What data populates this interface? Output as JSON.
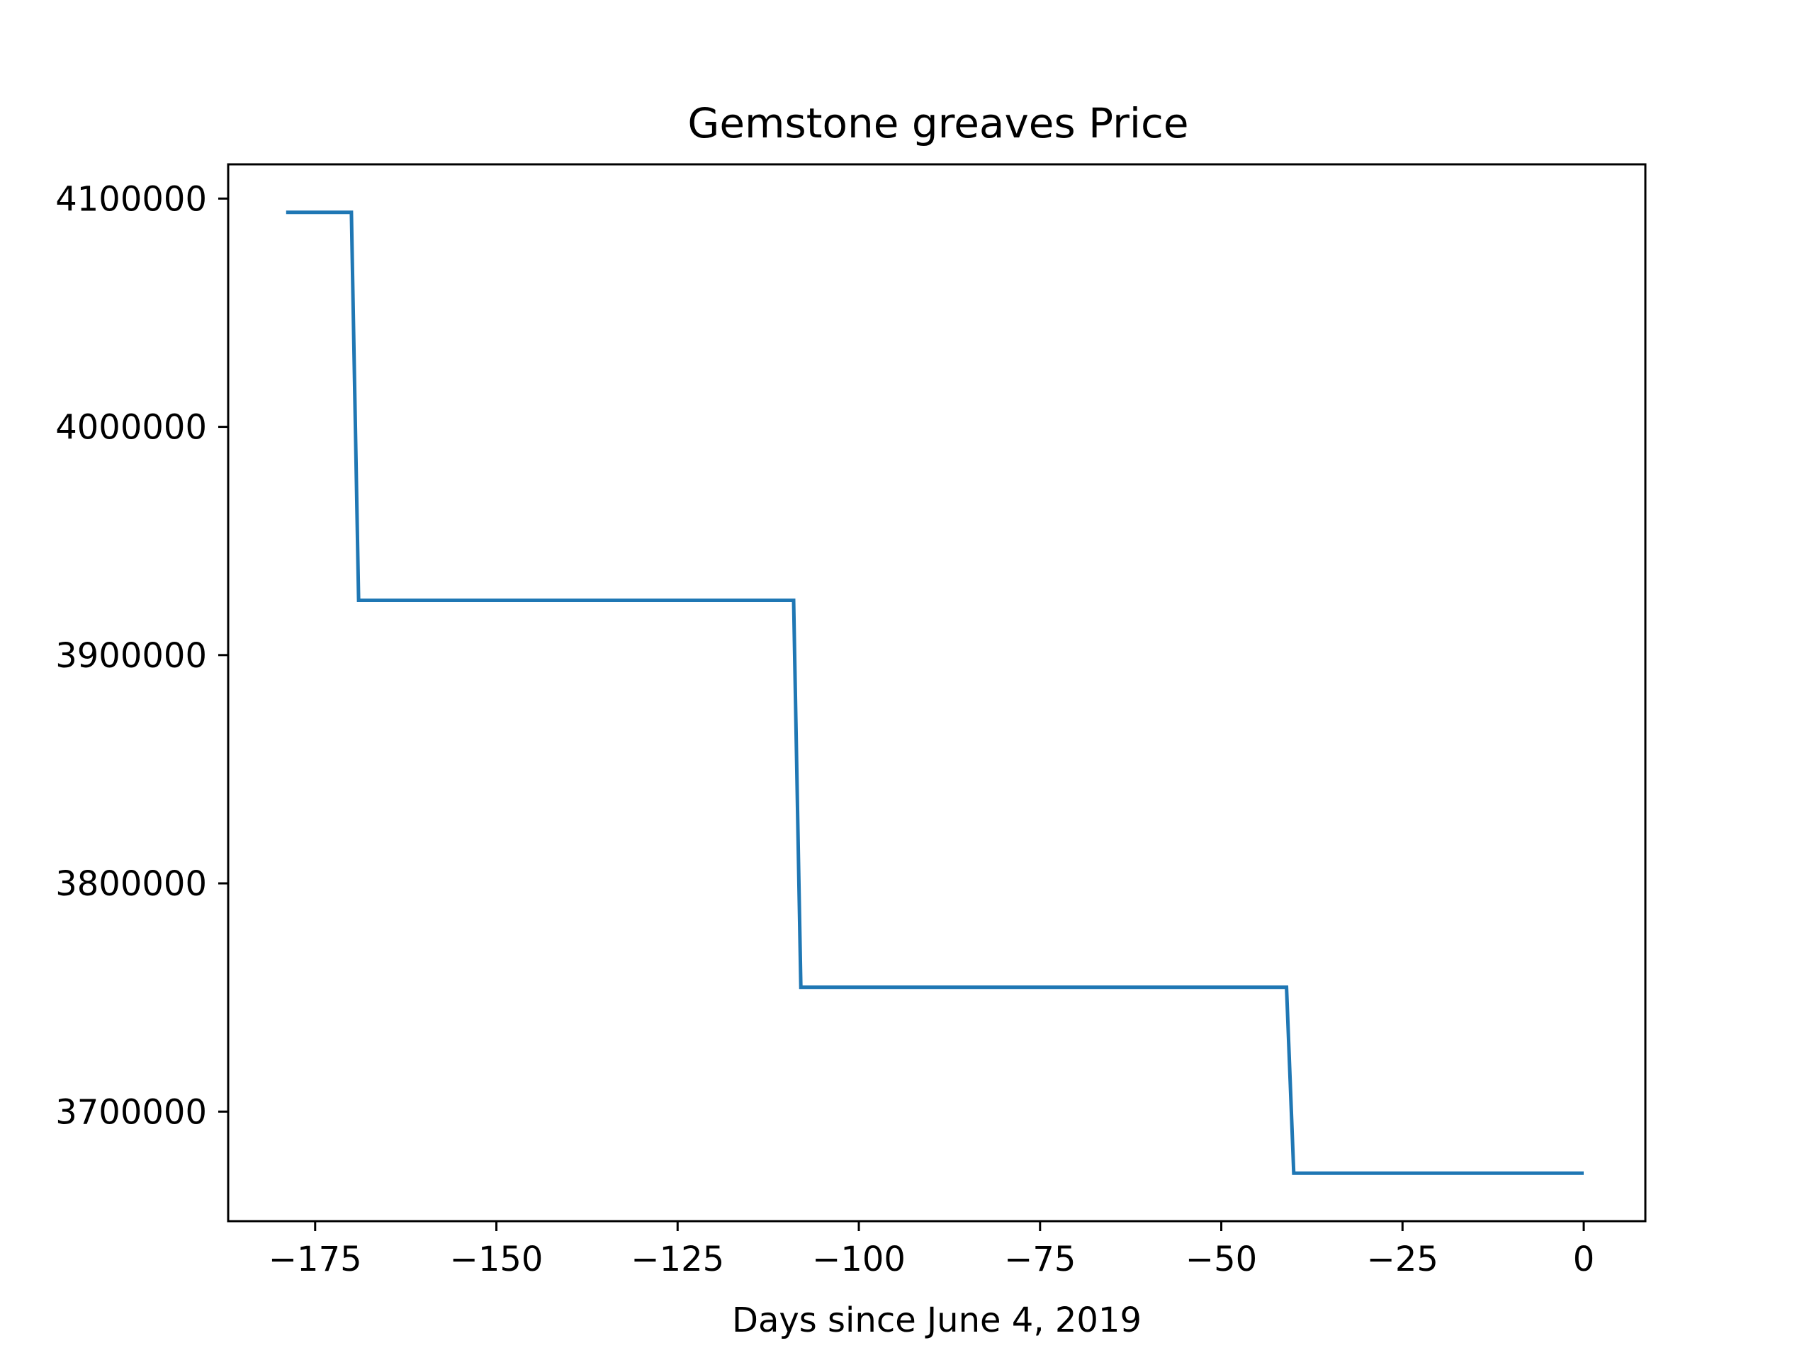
{
  "chart_data": {
    "type": "line",
    "title": "Gemstone greaves Price",
    "xlabel": "Days since June 4, 2019",
    "ylabel": "",
    "xlim": [
      -187,
      8.5
    ],
    "ylim": [
      3652000,
      4115000
    ],
    "x_ticks": [
      -175,
      -150,
      -125,
      -100,
      -75,
      -50,
      -25,
      0
    ],
    "x_tick_labels": [
      "−175",
      "−150",
      "−125",
      "−100",
      "−75",
      "−50",
      "−25",
      "0"
    ],
    "y_ticks": [
      3700000,
      3800000,
      3900000,
      4000000,
      4100000
    ],
    "y_tick_labels": [
      "3700000",
      "3800000",
      "3900000",
      "4000000",
      "4100000"
    ],
    "grid": false,
    "legend": "none",
    "series": [
      {
        "color": "#1f77b4",
        "x": [
          -179,
          -170,
          -169,
          -109,
          -108,
          -41,
          -40,
          0
        ],
        "y": [
          4094000,
          4094000,
          3924000,
          3924000,
          3754500,
          3754500,
          3673000,
          3673000
        ]
      }
    ]
  }
}
